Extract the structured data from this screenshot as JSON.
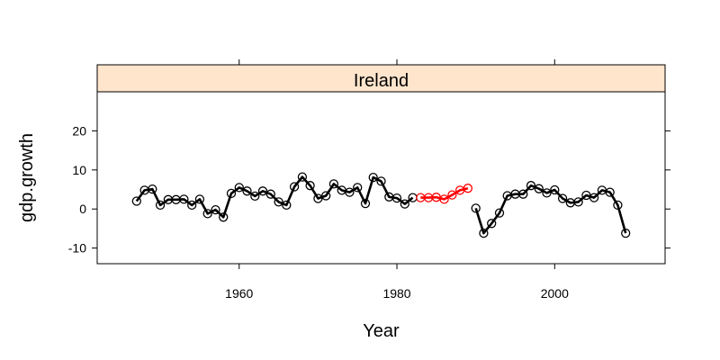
{
  "chart_data": {
    "type": "line",
    "panel_label": "Ireland",
    "xlabel": "Year",
    "ylabel": "gdp.growth",
    "xlim": [
      1942,
      2014
    ],
    "ylim": [
      -14,
      30
    ],
    "x_ticks": [
      1960,
      1980,
      2000
    ],
    "y_ticks": [
      -10,
      0,
      10,
      20
    ],
    "colors": {
      "strip": "#ffe5cc",
      "main": "#000000",
      "highlight": "#ff0000"
    },
    "series": [
      {
        "color": "#000000",
        "segments": [
          {
            "x": [
              1947,
              1948,
              1949,
              1950,
              1951,
              1952,
              1953,
              1954,
              1955,
              1956,
              1957,
              1958,
              1959,
              1960,
              1961,
              1962,
              1963,
              1964,
              1965,
              1966,
              1967,
              1968,
              1969,
              1970,
              1971,
              1972,
              1973,
              1974,
              1975,
              1976,
              1977,
              1978,
              1979,
              1980,
              1981,
              1982
            ],
            "y": [
              2,
              4.8,
              5.1,
              1,
              2.4,
              2.4,
              2.5,
              1,
              2.5,
              -1.2,
              -0.2,
              -2.1,
              4,
              5.5,
              4.6,
              3.3,
              4.6,
              3.8,
              1.8,
              1,
              5.7,
              8.2,
              6,
              2.7,
              3.4,
              6.4,
              4.8,
              4.3,
              5.5,
              1.4,
              8.1,
              7.1,
              3.1,
              2.8,
              1.3,
              2.9
            ]
          },
          {
            "x": [
              1990,
              1991,
              1992,
              1993,
              1994,
              1995,
              1996,
              1997,
              1998,
              1999,
              2000,
              2001,
              2002,
              2003,
              2004,
              2005,
              2006,
              2007,
              2008,
              2009
            ],
            "y": [
              0.2,
              -6.2,
              -3.7,
              -1,
              3.4,
              3.8,
              3.8,
              6,
              5.2,
              4.1,
              4.9,
              2.7,
              1.6,
              1.8,
              3.5,
              2.9,
              4.8,
              4.3,
              1,
              -6.2
            ]
          }
        ]
      },
      {
        "color": "#ff0000",
        "segments": [
          {
            "x": [
              1983,
              1984,
              1985,
              1986,
              1987,
              1988,
              1989
            ],
            "y": [
              2.9,
              2.9,
              3,
              2.5,
              3.6,
              4.8,
              5.3
            ]
          }
        ]
      }
    ]
  }
}
